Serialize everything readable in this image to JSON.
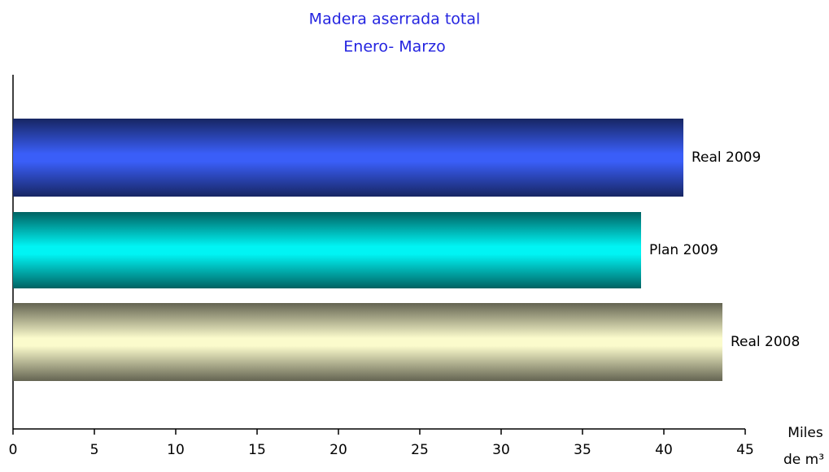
{
  "chart_data": {
    "type": "barh",
    "title": [
      "Madera aserrada total",
      "Enero- Marzo"
    ],
    "categories": [
      "Real 2009",
      "Plan 2009",
      "Real 2008"
    ],
    "values": [
      41.2,
      38.6,
      43.6
    ],
    "colors": [
      "#3a5ef8",
      "#00f4f4",
      "#fbfbcc"
    ],
    "xlabel": [
      "Miles",
      "de m³"
    ],
    "xlim": [
      0,
      45
    ],
    "xticks": [
      0,
      5,
      10,
      15,
      20,
      25,
      30,
      35,
      40,
      45
    ]
  }
}
